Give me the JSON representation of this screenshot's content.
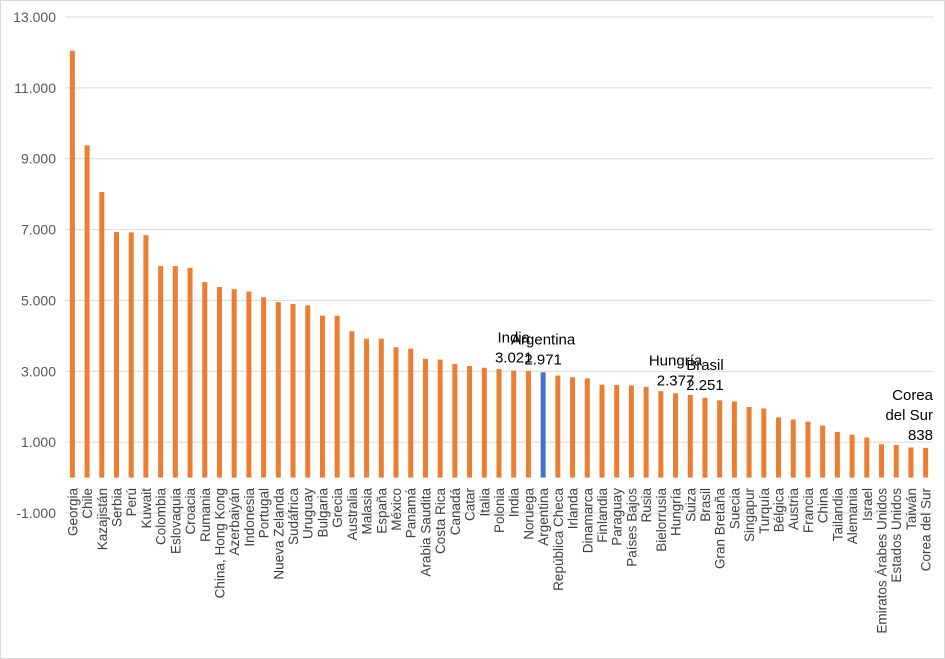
{
  "chart_data": {
    "type": "bar",
    "categories": [
      "Georgia",
      "Chile",
      "Kazajistán",
      "Serbia",
      "Perú",
      "Kuwait",
      "Colombia",
      "Eslovaquia",
      "Croacia",
      "Rumania",
      "China, Hong Kong",
      "Azerbaiyán",
      "Indonesia",
      "Portugal",
      "Nueva Zelanda",
      "Sudáfrica",
      "Uruguay",
      "Bulgaria",
      "Grecia",
      "Australia",
      "Malasia",
      "España",
      "México",
      "Panamá",
      "Arabia Saudita",
      "Costa Rica",
      "Canadá",
      "Catar",
      "Italia",
      "Polonia",
      "India",
      "Noruega",
      "Argentina",
      "República Checa",
      "Irlanda",
      "Dinamarca",
      "Finlandia",
      "Paraguay",
      "Países Bajos",
      "Rusia",
      "Bielorrusia",
      "Hungría",
      "Suiza",
      "Brasil",
      "Gran Bretaña",
      "Suecia",
      "Singapur",
      "Turquía",
      "Bélgica",
      "Austria",
      "Francia",
      "China",
      "Tailandia",
      "Alemania",
      "Israel",
      "Emiratos Árabes Unidos",
      "Estados Unidos",
      "Taiwán",
      "Corea del Sur"
    ],
    "values": [
      12050,
      9380,
      8060,
      6930,
      6920,
      6840,
      5970,
      5970,
      5920,
      5520,
      5380,
      5320,
      5250,
      5090,
      4950,
      4900,
      4860,
      4570,
      4570,
      4130,
      3920,
      3920,
      3680,
      3640,
      3350,
      3330,
      3210,
      3150,
      3100,
      3060,
      3021,
      3010,
      2971,
      2880,
      2830,
      2800,
      2620,
      2610,
      2600,
      2560,
      2440,
      2377,
      2330,
      2251,
      2180,
      2150,
      1990,
      1950,
      1700,
      1640,
      1580,
      1470,
      1290,
      1210,
      1130,
      940,
      920,
      850,
      838
    ],
    "highlight": "Argentina",
    "colors": {
      "bar": "#ED7D31",
      "highlight": "#4472C4",
      "grid": "#D9D9D9",
      "axis_text": "#595959"
    },
    "ylim": [
      -1000,
      13000
    ],
    "yticks": [
      "-1.000",
      "1.000",
      "3.000",
      "5.000",
      "7.000",
      "9.000",
      "11.000",
      "13.000"
    ],
    "ytick_values": [
      -1000,
      1000,
      3000,
      5000,
      7000,
      9000,
      11000,
      13000
    ],
    "grid": true,
    "annotations": [
      {
        "category": "India",
        "lines": [
          "India",
          "3.021"
        ]
      },
      {
        "category": "Argentina",
        "lines": [
          "Argentina",
          "2.971"
        ]
      },
      {
        "category": "Hungría",
        "lines": [
          "Hungría",
          "2.377"
        ]
      },
      {
        "category": "Brasil",
        "lines": [
          "Brasil",
          "2.251"
        ]
      },
      {
        "category": "Corea del Sur",
        "lines": [
          "Corea",
          "del Sur",
          "838"
        ]
      }
    ]
  }
}
